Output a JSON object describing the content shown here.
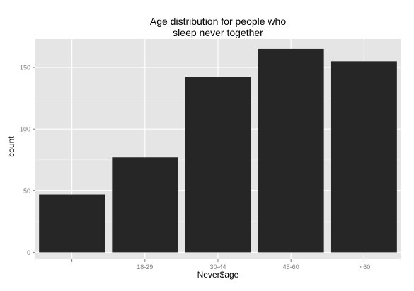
{
  "chart_data": {
    "type": "bar",
    "title_lines": [
      "Age distribution for people who",
      "sleep never together"
    ],
    "xlabel": "Never$age",
    "ylabel": "count",
    "categories": [
      "",
      "18-29",
      "30-44",
      "45-60",
      "> 60"
    ],
    "values": [
      47,
      77,
      142,
      165,
      155
    ],
    "ylim": [
      -5.5,
      173
    ],
    "yticks": [
      0,
      50,
      100,
      150
    ],
    "grid": true,
    "colors": {
      "panel": "#e5e5e5",
      "grid_major": "#ffffff",
      "grid_minor": "#f2f2f2",
      "bar": "#262626",
      "tick_text": "#7f7f7f"
    }
  }
}
